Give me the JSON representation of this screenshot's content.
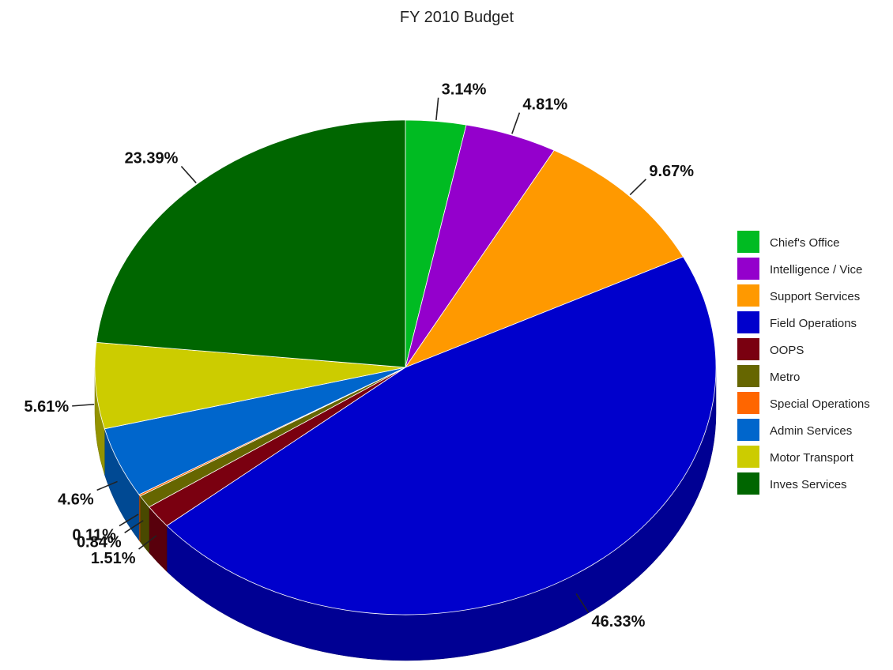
{
  "chart_data": {
    "type": "pie",
    "title": "FY 2010 Budget",
    "legend_position": "right",
    "slices": [
      {
        "name": "Chief's Office",
        "value": 3.14,
        "label": "3.14%",
        "color": "#00bb22"
      },
      {
        "name": "Intelligence / Vice",
        "value": 4.81,
        "label": "4.81%",
        "color": "#9400cc"
      },
      {
        "name": "Support Services",
        "value": 9.67,
        "label": "9.67%",
        "color": "#ff9900"
      },
      {
        "name": "Field Operations",
        "value": 46.33,
        "label": "46.33%",
        "color": "#0000cc"
      },
      {
        "name": "OOPS",
        "value": 1.51,
        "label": "1.51%",
        "color": "#7a0010"
      },
      {
        "name": "Metro",
        "value": 0.84,
        "label": "0.84%",
        "color": "#666600"
      },
      {
        "name": "Special Operations",
        "value": 0.11,
        "label": "0.11%",
        "color": "#ff6600"
      },
      {
        "name": "Admin Services",
        "value": 4.6,
        "label": "4.6%",
        "color": "#0066cc"
      },
      {
        "name": "Motor Transport",
        "value": 5.61,
        "label": "5.61%",
        "color": "#cccc00"
      },
      {
        "name": "Inves Services",
        "value": 23.39,
        "label": "23.39%",
        "color": "#006600"
      }
    ]
  }
}
